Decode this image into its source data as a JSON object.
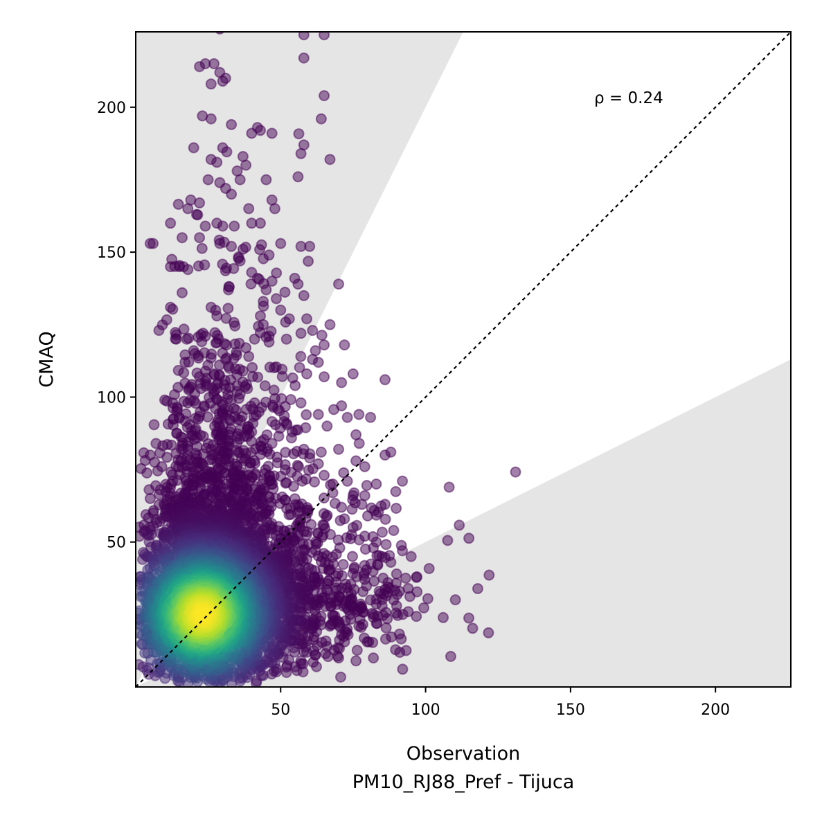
{
  "chart_data": {
    "type": "scatter",
    "title": "",
    "xlabel": "Observation",
    "xlabel_sub": "PM10_RJ88_Pref - Tijuca",
    "ylabel": "CMAQ",
    "xlim": [
      0,
      226
    ],
    "ylim": [
      0,
      226
    ],
    "xticks": [
      50,
      100,
      150,
      200
    ],
    "yticks": [
      50,
      100,
      150,
      200
    ],
    "annotation": "ρ = 0.24",
    "identity_line": true,
    "factor_of_two_band": true,
    "colormap": "viridis",
    "density_center": [
      23,
      25
    ],
    "colors": {
      "band": "#e5e5e5",
      "points_low": "#440154",
      "points_high": "#fde725"
    },
    "outliers": [
      [
        29,
        227
      ],
      [
        65,
        225
      ],
      [
        58,
        225
      ],
      [
        24,
        215
      ],
      [
        27,
        215
      ],
      [
        58,
        217
      ],
      [
        22,
        214
      ],
      [
        29,
        212
      ],
      [
        30,
        209
      ],
      [
        31,
        210
      ],
      [
        26,
        208
      ],
      [
        65,
        204
      ],
      [
        64,
        196
      ],
      [
        23,
        197
      ],
      [
        26,
        196
      ],
      [
        33,
        194
      ],
      [
        42,
        193
      ],
      [
        43,
        192
      ],
      [
        47,
        191
      ],
      [
        40,
        191
      ],
      [
        58,
        187
      ],
      [
        20,
        186
      ],
      [
        30,
        186
      ],
      [
        57,
        184
      ],
      [
        67,
        182
      ],
      [
        26,
        182
      ],
      [
        28,
        181
      ],
      [
        37,
        183
      ],
      [
        38,
        180
      ],
      [
        35,
        178
      ],
      [
        36,
        175
      ],
      [
        29,
        174
      ],
      [
        31,
        172
      ],
      [
        25,
        175
      ],
      [
        45,
        175
      ],
      [
        56,
        176
      ],
      [
        33,
        170
      ],
      [
        47,
        168
      ],
      [
        19,
        168
      ],
      [
        22,
        167
      ],
      [
        18,
        165
      ],
      [
        48,
        165
      ],
      [
        39,
        165
      ],
      [
        21,
        163
      ],
      [
        12,
        160
      ],
      [
        24,
        159
      ],
      [
        28,
        160
      ],
      [
        30,
        159
      ],
      [
        34,
        159
      ],
      [
        40,
        160
      ],
      [
        43,
        160
      ],
      [
        6,
        153
      ],
      [
        16,
        155
      ],
      [
        22,
        155
      ],
      [
        29,
        153
      ],
      [
        33,
        152
      ],
      [
        37,
        151
      ],
      [
        50,
        153
      ],
      [
        57,
        152
      ],
      [
        60,
        152
      ],
      [
        46,
        149
      ],
      [
        15,
        145
      ],
      [
        18,
        144
      ],
      [
        12,
        145
      ],
      [
        42,
        141
      ],
      [
        47,
        140
      ],
      [
        56,
        139
      ],
      [
        70,
        139
      ],
      [
        58,
        135
      ],
      [
        44,
        133
      ],
      [
        26,
        131
      ],
      [
        50,
        130
      ],
      [
        53,
        127
      ],
      [
        59,
        127
      ],
      [
        67,
        125
      ],
      [
        61,
        123
      ],
      [
        57,
        122
      ],
      [
        52,
        120
      ],
      [
        46,
        119
      ],
      [
        65,
        118
      ],
      [
        62,
        116
      ],
      [
        72,
        118
      ],
      [
        61,
        113
      ],
      [
        63,
        112
      ],
      [
        65,
        107
      ],
      [
        59,
        108
      ],
      [
        75,
        108
      ],
      [
        86,
        106
      ],
      [
        71,
        105
      ],
      [
        55,
        104
      ],
      [
        57,
        98
      ],
      [
        71,
        97
      ],
      [
        63,
        94
      ],
      [
        73,
        93
      ],
      [
        77,
        94
      ],
      [
        81,
        93
      ],
      [
        66,
        90
      ],
      [
        76,
        87
      ],
      [
        70,
        82
      ],
      [
        86,
        80
      ],
      [
        88,
        81
      ],
      [
        64,
        81
      ],
      [
        76,
        78
      ],
      [
        79,
        76
      ],
      [
        92,
        71
      ],
      [
        83,
        70
      ],
      [
        79,
        66
      ],
      [
        68,
        67
      ],
      [
        86,
        63
      ],
      [
        71,
        62
      ],
      [
        80,
        59
      ],
      [
        89,
        54
      ],
      [
        83,
        50
      ],
      [
        92,
        47
      ],
      [
        95,
        45
      ],
      [
        97,
        38
      ],
      [
        94,
        34
      ],
      [
        91,
        33
      ],
      [
        89,
        30
      ],
      [
        94,
        26
      ],
      [
        85,
        28
      ],
      [
        82,
        24
      ],
      [
        77,
        21
      ],
      [
        69,
        23
      ],
      [
        67,
        21
      ],
      [
        70,
        10
      ],
      [
        76,
        9
      ],
      [
        82,
        10
      ],
      [
        59,
        12
      ],
      [
        57,
        9
      ],
      [
        5,
        153
      ],
      [
        8,
        123
      ],
      [
        10,
        99
      ],
      [
        7,
        84
      ],
      [
        5,
        80
      ],
      [
        9,
        76
      ],
      [
        5,
        65
      ],
      [
        6,
        60
      ],
      [
        7,
        48
      ],
      [
        9,
        44
      ],
      [
        44,
        125
      ],
      [
        46,
        121
      ],
      [
        38,
        117
      ],
      [
        31,
        113
      ],
      [
        27,
        108
      ],
      [
        22,
        107
      ],
      [
        36,
        101
      ],
      [
        41,
        98
      ],
      [
        18,
        98
      ],
      [
        15,
        93
      ],
      [
        49,
        96
      ],
      [
        52,
        91
      ],
      [
        54,
        88
      ],
      [
        40,
        88
      ],
      [
        47,
        84
      ],
      [
        32,
        83
      ],
      [
        58,
        82
      ],
      [
        60,
        79
      ],
      [
        63,
        77
      ],
      [
        65,
        73
      ],
      [
        68,
        70
      ],
      [
        73,
        71
      ],
      [
        75,
        66
      ],
      [
        78,
        63
      ],
      [
        72,
        58
      ],
      [
        75,
        55
      ],
      [
        79,
        52
      ],
      [
        82,
        48
      ],
      [
        85,
        45
      ],
      [
        88,
        43
      ],
      [
        90,
        39
      ],
      [
        87,
        36
      ],
      [
        84,
        33
      ],
      [
        81,
        30
      ],
      [
        78,
        27
      ],
      [
        74,
        25
      ],
      [
        71,
        18
      ],
      [
        66,
        14
      ],
      [
        62,
        11
      ],
      [
        55,
        7
      ],
      [
        52,
        5
      ],
      [
        48,
        8
      ],
      [
        44,
        4
      ],
      [
        40,
        6
      ],
      [
        36,
        3
      ],
      [
        33,
        5
      ],
      [
        30,
        7
      ],
      [
        27,
        4
      ],
      [
        24,
        6
      ],
      [
        21,
        3
      ],
      [
        17,
        5
      ],
      [
        13,
        4
      ],
      [
        10,
        8
      ],
      [
        7,
        12
      ],
      [
        5,
        18
      ],
      [
        4,
        26
      ],
      [
        6,
        33
      ],
      [
        4,
        38
      ],
      [
        11,
        52
      ],
      [
        13,
        57
      ],
      [
        15,
        62
      ],
      [
        17,
        67
      ],
      [
        20,
        72
      ],
      [
        23,
        77
      ],
      [
        26,
        82
      ],
      [
        28,
        88
      ],
      [
        30,
        94
      ],
      [
        33,
        99
      ],
      [
        35,
        104
      ],
      [
        37,
        109
      ],
      [
        39,
        114
      ],
      [
        41,
        120
      ],
      [
        43,
        128
      ],
      [
        45,
        137
      ],
      [
        40,
        143
      ],
      [
        36,
        147
      ],
      [
        32,
        137
      ],
      [
        28,
        128
      ],
      [
        24,
        121
      ],
      [
        20,
        116
      ],
      [
        17,
        112
      ],
      [
        14,
        120
      ],
      [
        12,
        131
      ],
      [
        16,
        136
      ]
    ]
  }
}
